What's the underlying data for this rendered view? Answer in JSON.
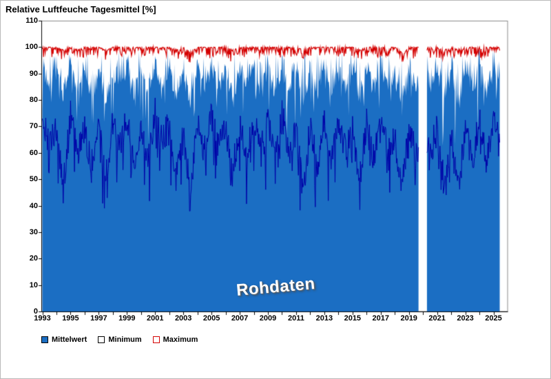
{
  "header": {
    "title": "Relative Luftfeuche Tagesmittel [%]"
  },
  "chart_data": {
    "type": "area",
    "title": "Relative Luftfeuche Tagesmittel [%]",
    "watermark": "Rohdaten",
    "x_domain": [
      1993,
      2026
    ],
    "x_data_start": 1993.0,
    "x_data_end": 2025.45,
    "x_tick_labels": [
      "1993",
      "1995",
      "1997",
      "1999",
      "2001",
      "2003",
      "2005",
      "2007",
      "2009",
      "2011",
      "2013",
      "2015",
      "2017",
      "2019",
      "2021",
      "2023",
      "2025"
    ],
    "x_tick_step_years": 2,
    "x_minor_tick_every_years": 1,
    "ylim": [
      0,
      110
    ],
    "y_tick_step": 10,
    "y_tick_labels": [
      "0",
      "10",
      "20",
      "30",
      "40",
      "50",
      "60",
      "70",
      "80",
      "90",
      "100",
      "110"
    ],
    "grid": "off",
    "gaps": [
      [
        2019.7,
        2020.25
      ]
    ],
    "sample_step_years": 0.04,
    "anchors_step_years": 0.5,
    "series": [
      {
        "name": "Mittelwert",
        "style": "area",
        "color": "#1b6ec3",
        "anchors": [
          92,
          85,
          90,
          83,
          93,
          84,
          91,
          82,
          90,
          80,
          92,
          85,
          93,
          84,
          91,
          83,
          94,
          86,
          92,
          82,
          90,
          79,
          92,
          84,
          93,
          85,
          91,
          81,
          92,
          86,
          93,
          84,
          92,
          83,
          94,
          84,
          91,
          80,
          92,
          83,
          93,
          84,
          92,
          85,
          91,
          81,
          92,
          84,
          93,
          85,
          90,
          79,
          92,
          84,
          93,
          85,
          92,
          82,
          90,
          80,
          92,
          84,
          93,
          83,
          94,
          88
        ]
      },
      {
        "name": "Minimum",
        "style": "line",
        "color": "#0000a8",
        "anchors": [
          75,
          62,
          70,
          48,
          74,
          60,
          68,
          55,
          70,
          50,
          73,
          62,
          74,
          58,
          70,
          57,
          76,
          63,
          72,
          50,
          68,
          47,
          72,
          60,
          74,
          62,
          70,
          52,
          72,
          60,
          74,
          60,
          72,
          58,
          75,
          60,
          68,
          46,
          70,
          55,
          73,
          58,
          72,
          62,
          69,
          49,
          71,
          58,
          73,
          61,
          66,
          47,
          71,
          58,
          73,
          60,
          69,
          48,
          66,
          45,
          70,
          57,
          72,
          56,
          75,
          66
        ]
      },
      {
        "name": "Maximum",
        "style": "line",
        "color": "#d40000",
        "anchors": [
          100,
          100,
          100,
          99,
          100,
          99,
          100,
          100,
          100,
          99,
          100,
          100,
          100,
          100,
          100,
          100,
          100,
          100,
          100,
          99,
          100,
          98,
          100,
          100,
          100,
          100,
          100,
          99,
          100,
          100,
          100,
          100,
          100,
          100,
          100,
          100,
          100,
          99,
          100,
          100,
          100,
          100,
          100,
          100,
          100,
          99,
          100,
          100,
          100,
          100,
          100,
          98,
          100,
          100,
          100,
          100,
          100,
          99,
          100,
          99,
          100,
          100,
          100,
          100,
          100,
          100
        ]
      }
    ],
    "noise": {
      "seed": 1337,
      "mean_jitter": 8,
      "mean_dip_prob": 0.22,
      "mean_dip_amp": 26,
      "mean_spike_prob": 0.3,
      "min_jitter": 12,
      "min_dip_prob": 0.1,
      "min_dip_amp": 18,
      "max_dip_amp": 4,
      "max_extra_dip_prob": 0.06
    },
    "legend_position": "bottom-left",
    "legend": [
      {
        "label": "Mittelwert",
        "fill": "#1b6ec3",
        "border": "#000000"
      },
      {
        "label": "Minimum",
        "fill": "#ffffff",
        "border": "#000000"
      },
      {
        "label": "Maximum",
        "fill": "#ffffff",
        "border": "#d40000"
      }
    ]
  }
}
